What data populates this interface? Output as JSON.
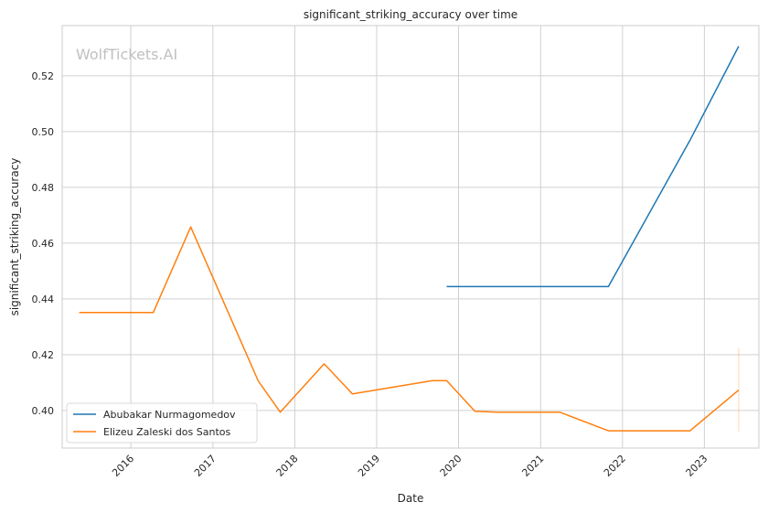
{
  "chart_data": {
    "type": "line",
    "title": "significant_striking_accuracy over time",
    "xlabel": "Date",
    "ylabel": "significant_striking_accuracy",
    "watermark": "WolfTickets.AI",
    "xlim": [
      "2015-03-01",
      "2023-09-01"
    ],
    "ylim": [
      0.3865,
      0.538
    ],
    "x_ticks": [
      "2016",
      "2017",
      "2018",
      "2019",
      "2020",
      "2021",
      "2022",
      "2023"
    ],
    "y_ticks": [
      "0.40",
      "0.42",
      "0.44",
      "0.46",
      "0.48",
      "0.50",
      "0.52"
    ],
    "grid": true,
    "legend_position": "lower-left",
    "colors": {
      "series1": "#1f77b4",
      "series2": "#ff7f0e",
      "grid": "#d0d0d0",
      "frame": "#cccccc"
    },
    "series": [
      {
        "name": "Abubakar Nurmagomedov",
        "color": "#1f77b4",
        "points": [
          [
            "2019-11-09",
            0.4444
          ],
          [
            "2021-10-30",
            0.4444
          ],
          [
            "2022-10-29",
            0.4969
          ],
          [
            "2023-06-03",
            0.5306
          ]
        ]
      },
      {
        "name": "Elizeu Zaleski dos Santos",
        "color": "#ff7f0e",
        "points": [
          [
            "2015-05-16",
            0.4351
          ],
          [
            "2016-04-10",
            0.4351
          ],
          [
            "2016-09-24",
            0.4658
          ],
          [
            "2017-07-22",
            0.4106
          ],
          [
            "2017-10-28",
            0.3994
          ],
          [
            "2018-05-12",
            0.4167
          ],
          [
            "2018-09-15",
            0.4059
          ],
          [
            "2019-09-07",
            0.4107
          ],
          [
            "2019-11-09",
            0.4107
          ],
          [
            "2020-03-14",
            0.3997
          ],
          [
            "2020-06-20",
            0.3994
          ],
          [
            "2021-03-27",
            0.3994
          ],
          [
            "2021-10-30",
            0.3927
          ],
          [
            "2022-10-29",
            0.3927
          ],
          [
            "2023-06-03",
            0.4073
          ]
        ],
        "error_bar": {
          "x": "2023-06-03",
          "low": 0.3925,
          "high": 0.4225
        }
      }
    ]
  }
}
